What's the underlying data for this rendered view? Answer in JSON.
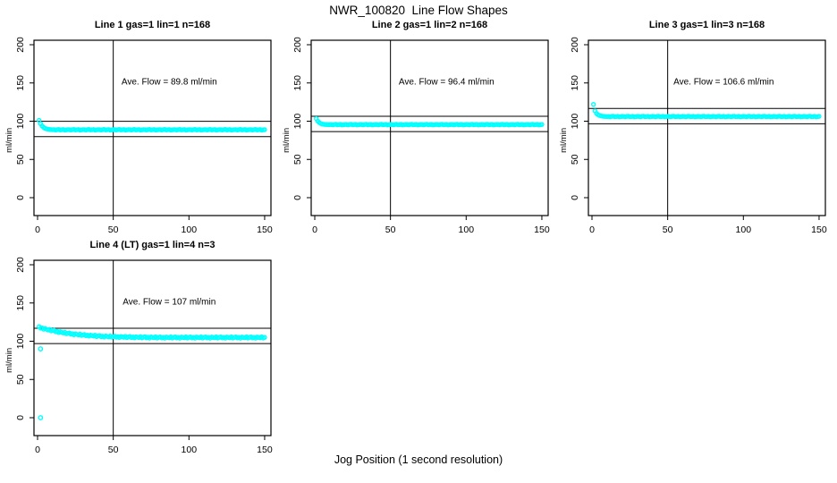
{
  "page": {
    "title": "NWR_100820  Line Flow Shapes",
    "xlabel": "Jog Position (1 second resolution)"
  },
  "colors": {
    "point": "#00FFFF",
    "line": "#000000",
    "text": "#000000",
    "background": "#FFFFFF"
  },
  "chart_data": [
    {
      "type": "scatter",
      "title": "Line 1 gas=1 lin=1 n=168",
      "annotation": "Ave. Flow =  89.8  ml/min",
      "ave_flow": 89.8,
      "ylabel": "ml/min",
      "xticks": [
        0,
        50,
        100,
        150
      ],
      "yticks": [
        0,
        50,
        100,
        150,
        200
      ],
      "xlim": [
        -2,
        155
      ],
      "ylim": [
        -23,
        205
      ],
      "vline": 50,
      "hlines": [
        99.8,
        79.8
      ],
      "x_start": 1,
      "y": [
        101.2,
        96.7,
        93.8,
        91.9,
        90.6,
        89.9,
        89.5,
        89.2,
        89.0,
        88.9,
        88.9,
        88.5,
        89.0,
        89.2,
        88.6,
        88.8,
        89.1,
        88.4,
        88.7,
        89.0,
        88.9,
        88.5,
        89.0,
        89.2,
        88.6,
        88.8,
        89.1,
        88.4,
        88.7,
        89.0,
        88.9,
        88.5,
        89.0,
        89.2,
        88.6,
        88.8,
        89.1,
        88.4,
        88.7,
        89.0,
        88.9,
        88.5,
        89.0,
        89.2,
        88.6,
        88.8,
        89.1,
        88.4,
        88.7,
        89.0,
        88.9,
        88.5,
        89.0,
        89.2,
        88.6,
        88.8,
        89.1,
        88.4,
        88.7,
        89.0,
        88.9,
        88.5,
        89.0,
        89.2,
        88.6,
        88.8,
        89.1,
        88.4,
        88.7,
        89.0,
        88.9,
        88.5,
        89.0,
        89.2,
        88.6,
        88.8,
        89.1,
        88.4,
        88.7,
        89.0,
        88.9,
        88.5,
        89.0,
        89.2,
        88.6,
        88.8,
        89.1,
        88.4,
        88.7,
        89.0,
        88.9,
        88.5,
        89.0,
        89.2,
        88.6,
        88.8,
        89.1,
        88.4,
        88.7,
        89.0,
        88.9,
        88.5,
        89.0,
        89.2,
        88.6,
        88.8,
        89.1,
        88.4,
        88.7,
        89.0,
        88.9,
        88.5,
        89.0,
        89.2,
        88.6,
        88.8,
        89.1,
        88.4,
        88.7,
        89.0,
        88.9,
        88.5,
        89.0,
        89.2,
        88.6,
        88.8,
        89.1,
        88.4,
        88.7,
        89.0,
        88.9,
        88.5,
        89.0,
        89.2,
        88.6,
        88.8,
        89.1,
        88.4,
        88.7,
        89.0,
        88.9,
        88.5,
        89.0,
        89.2,
        88.6,
        88.8,
        89.1,
        88.4,
        88.7,
        89.0
      ],
      "extra_points": []
    },
    {
      "type": "scatter",
      "title": "Line 2 gas=1 lin=2 n=168",
      "annotation": "Ave. Flow =  96.4  ml/min",
      "ave_flow": 96.4,
      "ylabel": "ml/min",
      "xticks": [
        0,
        50,
        100,
        150
      ],
      "yticks": [
        0,
        50,
        100,
        150,
        200
      ],
      "xlim": [
        -2,
        155
      ],
      "ylim": [
        -23,
        205
      ],
      "vline": 50,
      "hlines": [
        106.4,
        86.4
      ],
      "x_start": 1,
      "y": [
        103.4,
        100.1,
        98.2,
        97.0,
        96.3,
        95.9,
        95.7,
        95.6,
        95.5,
        95.5,
        95.6,
        95.2,
        95.7,
        95.9,
        95.3,
        95.5,
        95.8,
        95.1,
        95.4,
        95.7,
        95.6,
        95.2,
        95.7,
        95.9,
        95.3,
        95.5,
        95.8,
        95.1,
        95.4,
        95.7,
        95.6,
        95.2,
        95.7,
        95.9,
        95.3,
        95.5,
        95.8,
        95.1,
        95.4,
        95.7,
        95.6,
        95.2,
        95.7,
        95.9,
        95.3,
        95.5,
        95.8,
        95.1,
        95.4,
        95.7,
        95.6,
        95.2,
        95.7,
        95.9,
        95.3,
        95.5,
        95.8,
        95.1,
        95.4,
        95.7,
        95.6,
        95.2,
        95.7,
        95.9,
        95.3,
        95.5,
        95.8,
        95.1,
        95.4,
        95.7,
        95.6,
        95.2,
        95.7,
        95.9,
        95.3,
        95.5,
        95.8,
        95.1,
        95.4,
        95.7,
        95.6,
        95.2,
        95.7,
        95.9,
        95.3,
        95.5,
        95.8,
        95.1,
        95.4,
        95.7,
        95.6,
        95.2,
        95.7,
        95.9,
        95.3,
        95.5,
        95.8,
        95.1,
        95.4,
        95.7,
        95.6,
        95.2,
        95.7,
        95.9,
        95.3,
        95.5,
        95.8,
        95.1,
        95.4,
        95.7,
        95.6,
        95.2,
        95.7,
        95.9,
        95.3,
        95.5,
        95.8,
        95.1,
        95.4,
        95.7,
        95.6,
        95.2,
        95.7,
        95.9,
        95.3,
        95.5,
        95.8,
        95.1,
        95.4,
        95.7,
        95.6,
        95.2,
        95.7,
        95.9,
        95.3,
        95.5,
        95.8,
        95.1,
        95.4,
        95.7,
        95.6,
        95.2,
        95.7,
        95.9,
        95.3,
        95.5,
        95.8,
        95.1,
        95.4,
        95.7
      ],
      "extra_points": []
    },
    {
      "type": "scatter",
      "title": "Line 3 gas=1 lin=3 n=168",
      "annotation": "Ave. Flow =  106.6  ml/min",
      "ave_flow": 106.6,
      "ylabel": "ml/min",
      "xticks": [
        0,
        50,
        100,
        150
      ],
      "yticks": [
        0,
        50,
        100,
        150,
        200
      ],
      "xlim": [
        -2,
        155
      ],
      "ylim": [
        -23,
        205
      ],
      "vline": 50,
      "hlines": [
        116.6,
        96.6
      ],
      "x_start": 1,
      "y": [
        122.0,
        113.5,
        110.2,
        108.5,
        107.5,
        106.9,
        106.5,
        106.3,
        106.2,
        106.1,
        106.2,
        105.8,
        106.3,
        106.5,
        105.9,
        106.1,
        106.4,
        105.7,
        106.0,
        106.3,
        106.2,
        105.8,
        106.3,
        106.5,
        105.9,
        106.1,
        106.4,
        105.7,
        106.0,
        106.3,
        106.2,
        105.8,
        106.3,
        106.5,
        105.9,
        106.1,
        106.4,
        105.7,
        106.0,
        106.3,
        106.2,
        105.8,
        106.3,
        106.5,
        105.9,
        106.1,
        106.4,
        105.7,
        106.0,
        106.3,
        106.2,
        105.8,
        106.3,
        106.5,
        105.9,
        106.1,
        106.4,
        105.7,
        106.0,
        106.3,
        106.2,
        105.8,
        106.3,
        106.5,
        105.9,
        106.1,
        106.4,
        105.7,
        106.0,
        106.3,
        106.2,
        105.8,
        106.3,
        106.5,
        105.9,
        106.1,
        106.4,
        105.7,
        106.0,
        106.3,
        106.2,
        105.8,
        106.3,
        106.5,
        105.9,
        106.1,
        106.4,
        105.7,
        106.0,
        106.3,
        106.2,
        105.8,
        106.3,
        106.5,
        105.9,
        106.1,
        106.4,
        105.7,
        106.0,
        106.3,
        106.2,
        105.8,
        106.3,
        106.5,
        105.9,
        106.1,
        106.4,
        105.7,
        106.0,
        106.3,
        106.2,
        105.8,
        106.3,
        106.5,
        105.9,
        106.1,
        106.4,
        105.7,
        106.0,
        106.3,
        106.2,
        105.8,
        106.3,
        106.5,
        105.9,
        106.1,
        106.4,
        105.7,
        106.0,
        106.3,
        106.2,
        105.8,
        106.3,
        106.5,
        105.9,
        106.1,
        106.4,
        105.7,
        106.0,
        106.3,
        106.2,
        105.8,
        106.3,
        106.5,
        105.9,
        106.1,
        106.4,
        105.7,
        106.0,
        106.3
      ],
      "extra_points": []
    },
    {
      "type": "scatter",
      "title": "Line 4 (LT) gas=1 lin=4 n=3",
      "annotation": "Ave. Flow =  107  ml/min",
      "ave_flow": 107,
      "ylabel": "ml/min",
      "xticks": [
        0,
        50,
        100,
        150
      ],
      "yticks": [
        0,
        50,
        100,
        150,
        200
      ],
      "xlim": [
        -2,
        155
      ],
      "ylim": [
        -23,
        205
      ],
      "vline": 50,
      "hlines": [
        117,
        97
      ],
      "x_start": 1,
      "y": [
        119.1,
        117.1,
        117.4,
        115.7,
        116.6,
        115.6,
        114.7,
        115.5,
        113.5,
        114.0,
        114.2,
        112.4,
        112.9,
        111.3,
        112.5,
        111.6,
        110.8,
        111.8,
        109.9,
        110.5,
        110.9,
        109.2,
        109.9,
        108.4,
        109.7,
        109.0,
        108.3,
        109.4,
        107.6,
        108.3,
        108.8,
        107.2,
        107.9,
        106.6,
        107.9,
        107.3,
        106.7,
        107.9,
        106.1,
        106.9,
        107.4,
        105.9,
        106.7,
        105.4,
        106.9,
        106.3,
        105.7,
        106.9,
        105.3,
        106.1,
        106.6,
        105.2,
        106.0,
        104.8,
        106.2,
        105.7,
        105.1,
        106.4,
        104.7,
        105.6,
        106.2,
        104.7,
        105.6,
        104.4,
        105.8,
        105.3,
        104.8,
        106.0,
        104.4,
        105.3,
        105.9,
        104.4,
        105.3,
        104.1,
        105.6,
        105.0,
        104.6,
        105.8,
        104.2,
        105.1,
        105.6,
        104.3,
        105.1,
        104.0,
        105.4,
        104.9,
        104.5,
        105.7,
        104.2,
        105.0,
        105.6,
        104.3,
        105.1,
        104.0,
        105.4,
        104.9,
        104.5,
        105.7,
        104.2,
        105.0,
        105.6,
        104.3,
        105.1,
        104.0,
        105.4,
        104.9,
        104.5,
        105.7,
        104.2,
        105.0,
        105.6,
        104.3,
        105.1,
        104.0,
        105.4,
        104.9,
        104.5,
        105.7,
        104.2,
        105.0,
        105.6,
        104.3,
        105.1,
        104.0,
        105.4,
        104.9,
        104.5,
        105.7,
        104.2,
        105.0,
        105.6,
        104.3,
        105.1,
        104.0,
        105.4,
        104.9,
        104.5,
        105.7,
        104.2,
        105.0,
        105.6,
        104.3,
        105.1,
        104.0,
        105.4,
        104.9,
        104.5,
        105.7,
        104.2,
        105.0
      ],
      "extra_points": [
        {
          "x": 2,
          "y": 90
        },
        {
          "x": 2,
          "y": 0
        }
      ]
    }
  ]
}
